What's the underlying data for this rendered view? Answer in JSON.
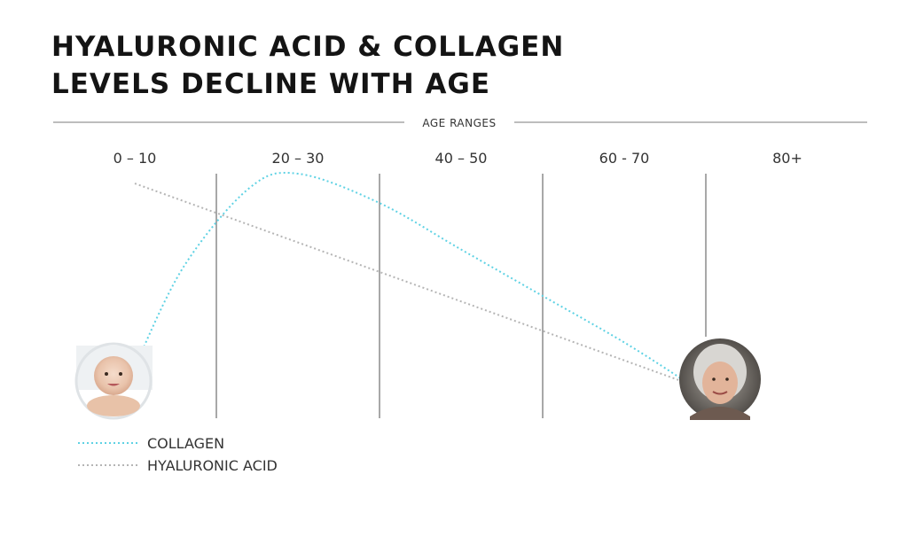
{
  "chart_data": {
    "type": "line",
    "title_lines": [
      "HYALURONIC ACID & COLLAGEN",
      "LEVELS DECLINE WITH AGE"
    ],
    "xlabel": "AGE RANGES",
    "categories": [
      "0 – 10",
      "20 – 30",
      "40 – 50",
      "60 - 70",
      "80+"
    ],
    "ylabel": "",
    "y_ticks_shown": false,
    "grid": "vertical lines between age ranges",
    "legend_position": "bottom-left",
    "series": [
      {
        "name": "COLLAGEN",
        "color": "#5fd2e4",
        "style": "dotted",
        "points": [
          {
            "x": 0,
            "y": 0.21
          },
          {
            "x": 0.3,
            "y": 0.62
          },
          {
            "x": 0.7,
            "y": 0.94
          },
          {
            "x": 1,
            "y": 1.0
          },
          {
            "x": 1.5,
            "y": 0.88
          },
          {
            "x": 2,
            "y": 0.69
          },
          {
            "x": 2.5,
            "y": 0.5
          },
          {
            "x": 3,
            "y": 0.31
          },
          {
            "x": 3.4,
            "y": 0.14
          }
        ]
      },
      {
        "name": "HYALURONIC ACID",
        "color": "#b5b5b5",
        "style": "dotted",
        "points": [
          {
            "x": 0,
            "y": 0.96
          },
          {
            "x": 3.4,
            "y": 0.14
          }
        ]
      }
    ],
    "annotations": [
      {
        "label": "baby-photo",
        "at_category": "0 – 10"
      },
      {
        "label": "elderly-woman-photo",
        "at_category": "80+"
      }
    ]
  }
}
